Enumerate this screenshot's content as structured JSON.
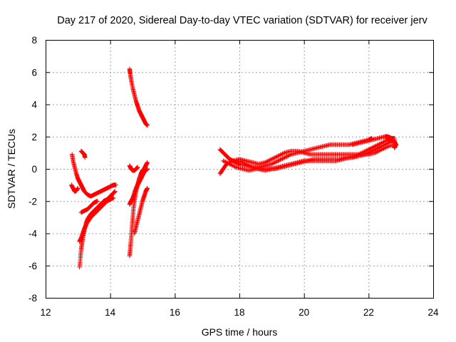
{
  "chart_data": {
    "type": "scatter",
    "title": "Day 217 of 2020, Sidereal Day-to-day VTEC variation (SDTVAR) for receiver jerv",
    "xlabel": "GPS time / hours",
    "ylabel": "SDTVAR / TECUs",
    "xlim": [
      12,
      24
    ],
    "ylim": [
      -8,
      8
    ],
    "xticks": [
      "12",
      "14",
      "16",
      "18",
      "20",
      "22",
      "24"
    ],
    "yticks": [
      "-8",
      "-6",
      "-4",
      "-2",
      "0",
      "2",
      "4",
      "6",
      "8"
    ],
    "grid": true,
    "marker": "plus",
    "color": "#ff0000",
    "tracks": [
      [
        [
          12.82,
          0.9
        ],
        [
          12.85,
          0.5
        ],
        [
          12.9,
          0.1
        ],
        [
          12.95,
          -0.3
        ],
        [
          13.0,
          -0.6
        ],
        [
          13.05,
          -0.8
        ],
        [
          13.1,
          -1.0
        ],
        [
          13.15,
          -1.2
        ],
        [
          13.2,
          -1.4
        ],
        [
          13.3,
          -1.6
        ],
        [
          13.4,
          -1.7
        ],
        [
          13.5,
          -1.6
        ],
        [
          13.6,
          -1.5
        ],
        [
          13.7,
          -1.4
        ],
        [
          13.8,
          -1.3
        ],
        [
          13.9,
          -1.2
        ],
        [
          14.0,
          -1.1
        ],
        [
          14.1,
          -1.0
        ],
        [
          14.18,
          -1.0
        ]
      ],
      [
        [
          12.8,
          -1.0
        ],
        [
          12.85,
          -1.2
        ],
        [
          12.9,
          -1.4
        ],
        [
          12.95,
          -1.35
        ],
        [
          13.0,
          -1.2
        ]
      ],
      [
        [
          13.1,
          1.1
        ],
        [
          13.15,
          1.0
        ],
        [
          13.2,
          0.9
        ],
        [
          13.22,
          0.7
        ]
      ],
      [
        [
          13.05,
          -6.1
        ],
        [
          13.08,
          -5.5
        ],
        [
          13.1,
          -5.0
        ],
        [
          13.13,
          -4.6
        ],
        [
          13.16,
          -4.2
        ],
        [
          13.2,
          -3.8
        ],
        [
          13.25,
          -3.4
        ],
        [
          13.3,
          -3.1
        ],
        [
          13.4,
          -2.8
        ],
        [
          13.5,
          -2.6
        ],
        [
          13.6,
          -2.4
        ],
        [
          13.7,
          -2.2
        ],
        [
          13.8,
          -2.0
        ],
        [
          13.9,
          -1.9
        ],
        [
          14.0,
          -1.7
        ],
        [
          14.1,
          -1.5
        ],
        [
          14.15,
          -1.4
        ]
      ],
      [
        [
          13.05,
          -4.5
        ],
        [
          13.1,
          -4.3
        ],
        [
          13.15,
          -4.0
        ],
        [
          13.2,
          -3.7
        ],
        [
          13.3,
          -3.3
        ],
        [
          13.4,
          -3.0
        ],
        [
          13.5,
          -2.8
        ],
        [
          13.6,
          -2.6
        ],
        [
          13.7,
          -2.4
        ],
        [
          13.8,
          -2.2
        ],
        [
          13.9,
          -2.0
        ],
        [
          14.0,
          -1.9
        ],
        [
          14.1,
          -1.8
        ]
      ],
      [
        [
          13.1,
          -2.7
        ],
        [
          13.2,
          -2.6
        ],
        [
          13.3,
          -2.5
        ],
        [
          13.4,
          -2.3
        ],
        [
          13.5,
          -2.1
        ],
        [
          13.6,
          -2.0
        ]
      ],
      [
        [
          14.6,
          6.2
        ],
        [
          14.62,
          5.9
        ],
        [
          14.65,
          5.5
        ],
        [
          14.7,
          5.0
        ],
        [
          14.75,
          4.6
        ],
        [
          14.8,
          4.2
        ],
        [
          14.85,
          3.9
        ],
        [
          14.9,
          3.6
        ],
        [
          14.95,
          3.4
        ],
        [
          15.0,
          3.2
        ],
        [
          15.05,
          3.0
        ],
        [
          15.1,
          2.8
        ],
        [
          15.15,
          2.7
        ]
      ],
      [
        [
          14.6,
          -5.4
        ],
        [
          14.62,
          -5.0
        ],
        [
          14.64,
          -4.5
        ],
        [
          14.66,
          -4.0
        ],
        [
          14.68,
          -3.5
        ],
        [
          14.7,
          -3.0
        ],
        [
          14.72,
          -2.5
        ],
        [
          14.75,
          -2.0
        ],
        [
          14.78,
          -1.6
        ],
        [
          14.82,
          -1.2
        ],
        [
          14.86,
          -0.9
        ],
        [
          14.9,
          -0.6
        ],
        [
          14.95,
          -0.3
        ],
        [
          15.0,
          -0.1
        ],
        [
          15.05,
          0.0
        ],
        [
          15.1,
          0.2
        ],
        [
          15.15,
          0.4
        ]
      ],
      [
        [
          14.6,
          0.2
        ],
        [
          14.65,
          0.0
        ],
        [
          14.7,
          -0.1
        ],
        [
          14.75,
          -0.1
        ],
        [
          14.8,
          0.0
        ],
        [
          14.85,
          0.1
        ]
      ],
      [
        [
          14.6,
          -2.2
        ],
        [
          14.65,
          -2.0
        ],
        [
          14.7,
          -1.8
        ],
        [
          14.75,
          -1.5
        ],
        [
          14.8,
          -1.2
        ],
        [
          14.85,
          -1.0
        ],
        [
          14.9,
          -0.8
        ],
        [
          14.95,
          -0.6
        ],
        [
          15.0,
          -0.4
        ],
        [
          15.05,
          -0.2
        ],
        [
          15.1,
          -0.1
        ],
        [
          15.15,
          0.0
        ]
      ],
      [
        [
          14.75,
          -4.0
        ],
        [
          14.8,
          -3.6
        ],
        [
          14.85,
          -3.2
        ],
        [
          14.9,
          -2.8
        ],
        [
          14.95,
          -2.4
        ],
        [
          15.0,
          -2.0
        ],
        [
          15.05,
          -1.7
        ],
        [
          15.1,
          -1.4
        ],
        [
          15.15,
          -1.2
        ]
      ],
      [
        [
          17.4,
          1.2
        ],
        [
          17.5,
          1.0
        ],
        [
          17.6,
          0.8
        ],
        [
          17.7,
          0.6
        ],
        [
          17.8,
          0.5
        ],
        [
          17.9,
          0.4
        ],
        [
          18.0,
          0.3
        ],
        [
          18.2,
          0.2
        ],
        [
          18.4,
          0.1
        ],
        [
          18.6,
          0.1
        ],
        [
          18.8,
          0.2
        ],
        [
          19.0,
          0.3
        ],
        [
          19.2,
          0.5
        ],
        [
          19.4,
          0.7
        ],
        [
          19.6,
          0.9
        ],
        [
          19.8,
          1.0
        ],
        [
          20.0,
          1.1
        ],
        [
          20.2,
          1.2
        ],
        [
          20.4,
          1.3
        ],
        [
          20.6,
          1.4
        ],
        [
          20.8,
          1.5
        ],
        [
          21.0,
          1.5
        ],
        [
          21.2,
          1.5
        ],
        [
          21.4,
          1.5
        ],
        [
          21.6,
          1.6
        ],
        [
          21.8,
          1.7
        ],
        [
          22.0,
          1.8
        ],
        [
          22.1,
          1.9
        ]
      ],
      [
        [
          17.4,
          -0.3
        ],
        [
          17.5,
          0.0
        ],
        [
          17.6,
          0.3
        ],
        [
          17.8,
          0.5
        ],
        [
          18.0,
          0.6
        ],
        [
          18.2,
          0.5
        ],
        [
          18.4,
          0.4
        ],
        [
          18.6,
          0.3
        ],
        [
          18.8,
          0.4
        ],
        [
          19.0,
          0.6
        ],
        [
          19.2,
          0.8
        ],
        [
          19.4,
          1.0
        ],
        [
          19.6,
          1.1
        ],
        [
          19.8,
          1.1
        ],
        [
          20.0,
          1.0
        ],
        [
          20.2,
          0.9
        ],
        [
          20.4,
          0.9
        ],
        [
          20.6,
          0.9
        ],
        [
          20.8,
          0.9
        ],
        [
          21.0,
          0.9
        ],
        [
          21.2,
          0.9
        ],
        [
          21.4,
          0.9
        ],
        [
          21.6,
          0.9
        ],
        [
          21.8,
          0.9
        ],
        [
          22.0,
          0.9
        ],
        [
          22.2,
          1.0
        ],
        [
          22.4,
          1.2
        ],
        [
          22.6,
          1.4
        ],
        [
          22.8,
          1.5
        ]
      ],
      [
        [
          17.5,
          0.5
        ],
        [
          17.7,
          0.3
        ],
        [
          17.9,
          0.1
        ],
        [
          18.1,
          0.0
        ],
        [
          18.3,
          -0.1
        ],
        [
          18.5,
          0.0
        ],
        [
          18.7,
          0.0
        ],
        [
          18.9,
          0.0
        ],
        [
          19.1,
          0.0
        ],
        [
          19.3,
          0.1
        ],
        [
          19.5,
          0.2
        ],
        [
          19.7,
          0.3
        ],
        [
          19.9,
          0.4
        ],
        [
          20.1,
          0.5
        ],
        [
          20.3,
          0.6
        ],
        [
          20.5,
          0.6
        ],
        [
          20.7,
          0.6
        ],
        [
          20.9,
          0.6
        ],
        [
          21.1,
          0.6
        ],
        [
          21.3,
          0.7
        ],
        [
          21.5,
          0.7
        ],
        [
          21.7,
          0.8
        ],
        [
          21.9,
          0.9
        ],
        [
          22.1,
          1.1
        ],
        [
          22.3,
          1.3
        ],
        [
          22.5,
          1.5
        ],
        [
          22.7,
          1.7
        ],
        [
          22.8,
          1.8
        ]
      ],
      [
        [
          18.0,
          0.5
        ],
        [
          18.2,
          0.3
        ],
        [
          18.4,
          0.1
        ],
        [
          18.6,
          0.0
        ],
        [
          18.8,
          -0.1
        ],
        [
          19.0,
          0.0
        ],
        [
          19.2,
          0.1
        ],
        [
          19.4,
          0.2
        ],
        [
          19.6,
          0.3
        ],
        [
          19.8,
          0.4
        ],
        [
          20.0,
          0.5
        ],
        [
          20.2,
          0.5
        ],
        [
          20.4,
          0.5
        ],
        [
          20.6,
          0.5
        ],
        [
          20.8,
          0.5
        ],
        [
          21.0,
          0.5
        ],
        [
          21.2,
          0.6
        ],
        [
          21.4,
          0.7
        ],
        [
          21.6,
          0.8
        ],
        [
          21.8,
          1.0
        ],
        [
          22.0,
          1.2
        ],
        [
          22.2,
          1.4
        ],
        [
          22.4,
          1.6
        ],
        [
          22.6,
          1.8
        ],
        [
          22.7,
          1.9
        ],
        [
          22.8,
          1.9
        ]
      ],
      [
        [
          21.5,
          1.5
        ],
        [
          21.7,
          1.6
        ],
        [
          21.9,
          1.7
        ],
        [
          22.1,
          1.8
        ],
        [
          22.3,
          1.9
        ],
        [
          22.5,
          2.0
        ],
        [
          22.6,
          2.0
        ],
        [
          22.7,
          1.9
        ],
        [
          22.8,
          1.7
        ],
        [
          22.85,
          1.5
        ],
        [
          22.8,
          1.3
        ]
      ]
    ]
  }
}
